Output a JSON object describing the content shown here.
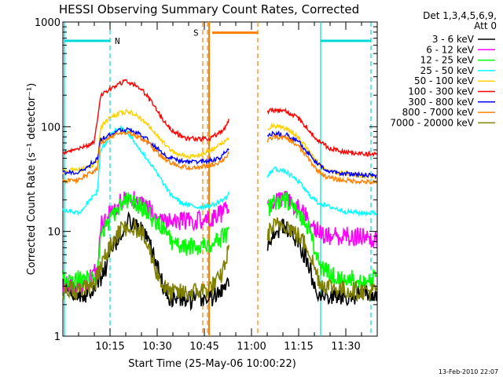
{
  "chart_data": {
    "type": "line",
    "title": "HESSI Observing Summary Count Rates, Corrected",
    "xlabel": "Start Time (25-May-06 10:00:22)",
    "ylabel": "Corrected Count Rate (s⁻¹ detector⁻¹)",
    "y_scale": "log",
    "ylim": [
      1,
      1000
    ],
    "xlim_minutes": [
      0,
      100
    ],
    "x_ticks": [
      {
        "label": "10:15",
        "minutes": 15
      },
      {
        "label": "10:30",
        "minutes": 30
      },
      {
        "label": "10:45",
        "minutes": 45
      },
      {
        "label": "11:00",
        "minutes": 60
      },
      {
        "label": "11:15",
        "minutes": 75
      },
      {
        "label": "11:30",
        "minutes": 90
      }
    ],
    "y_ticks": [
      {
        "label": "1",
        "value": 1
      },
      {
        "label": "10",
        "value": 10
      },
      {
        "label": "100",
        "value": 100
      },
      {
        "label": "1000",
        "value": 1000
      }
    ],
    "legend_header": [
      "Det 1,3,4,5,6,9,",
      "Att 0"
    ],
    "legend_position": "right",
    "footer_date": "13-Feb-2010 22:07",
    "annotations": [
      {
        "label": "N",
        "color": "#00d8d8"
      },
      {
        "label": "S",
        "color": "#ff8000"
      }
    ],
    "flag_markers": [
      {
        "kind": "night",
        "color": "#00d8d8",
        "solid_minutes": [
          0.5,
          82
        ],
        "dashed_minutes": [
          15,
          98
        ],
        "bar_minutes": [
          [
            0.5,
            15
          ],
          [
            82,
            98
          ]
        ],
        "bar_value": 660
      },
      {
        "kind": "saa",
        "color": "#ff8000",
        "solid_minutes": [
          46.5
        ],
        "dashed_minutes": [
          44.5,
          46,
          62
        ],
        "bar_minutes": [
          [
            47.5,
            62
          ]
        ],
        "bar_value": 790
      }
    ],
    "gap_minutes": [
      53,
      65
    ],
    "series": [
      {
        "name": "3 - 6 keV",
        "color": "#000000",
        "values": [
          [
            0,
            3
          ],
          [
            7,
            2.5
          ],
          [
            10,
            3
          ],
          [
            13,
            4
          ],
          [
            15,
            6
          ],
          [
            18,
            9
          ],
          [
            21,
            12.5
          ],
          [
            24,
            11
          ],
          [
            26,
            9
          ],
          [
            28,
            7
          ],
          [
            30,
            4.5
          ],
          [
            32,
            3
          ],
          [
            34,
            2.3
          ],
          [
            40,
            2.2
          ],
          [
            46,
            2.3
          ],
          [
            50,
            2.5
          ],
          [
            52,
            3.5
          ],
          [
            65,
            7
          ],
          [
            67,
            10
          ],
          [
            70,
            11
          ],
          [
            72,
            10
          ],
          [
            75,
            8
          ],
          [
            78,
            5
          ],
          [
            80,
            3
          ],
          [
            82,
            2.5
          ],
          [
            88,
            2.4
          ],
          [
            95,
            2.5
          ],
          [
            100,
            2.5
          ]
        ]
      },
      {
        "name": "6 - 12 keV",
        "color": "#ff00ff",
        "values": [
          [
            0,
            3
          ],
          [
            7,
            3
          ],
          [
            11,
            4.5
          ],
          [
            12,
            12
          ],
          [
            15,
            15
          ],
          [
            18,
            19
          ],
          [
            20,
            21
          ],
          [
            23,
            20
          ],
          [
            26,
            17.5
          ],
          [
            29,
            15
          ],
          [
            32,
            13
          ],
          [
            35,
            12.5
          ],
          [
            40,
            12.5
          ],
          [
            45,
            13
          ],
          [
            49,
            14
          ],
          [
            52,
            16
          ],
          [
            53,
            17
          ],
          [
            65,
            18
          ],
          [
            67,
            20
          ],
          [
            71,
            20
          ],
          [
            75,
            17
          ],
          [
            78,
            14
          ],
          [
            80,
            11
          ],
          [
            83,
            9
          ],
          [
            88,
            9
          ],
          [
            95,
            9
          ],
          [
            100,
            8.5
          ]
        ]
      },
      {
        "name": "12 - 25 keV",
        "color": "#00ff00",
        "values": [
          [
            0,
            3.5
          ],
          [
            11,
            3.5
          ],
          [
            12,
            10
          ],
          [
            15,
            13
          ],
          [
            18,
            17
          ],
          [
            21,
            20
          ],
          [
            23,
            19
          ],
          [
            26,
            16
          ],
          [
            29,
            13
          ],
          [
            32,
            10.5
          ],
          [
            35,
            7.5
          ],
          [
            40,
            7
          ],
          [
            45,
            7.5
          ],
          [
            49,
            8
          ],
          [
            52,
            9.5
          ],
          [
            53,
            10
          ],
          [
            65,
            16
          ],
          [
            67,
            19
          ],
          [
            71,
            19.5
          ],
          [
            75,
            15
          ],
          [
            78,
            11
          ],
          [
            80,
            7
          ],
          [
            82,
            4.5
          ],
          [
            88,
            3.5
          ],
          [
            95,
            3.5
          ],
          [
            100,
            3.5
          ]
        ]
      },
      {
        "name": "25 - 50 keV",
        "color": "#00ffff",
        "values": [
          [
            0,
            16
          ],
          [
            5,
            15
          ],
          [
            8,
            19
          ],
          [
            11,
            24
          ],
          [
            12,
            60
          ],
          [
            15,
            80
          ],
          [
            17,
            95
          ],
          [
            19,
            100
          ],
          [
            22,
            78
          ],
          [
            25,
            58
          ],
          [
            28,
            44
          ],
          [
            31,
            32
          ],
          [
            34,
            23
          ],
          [
            38,
            18.5
          ],
          [
            43,
            17
          ],
          [
            48,
            18
          ],
          [
            52,
            21
          ],
          [
            53,
            24
          ],
          [
            65,
            33
          ],
          [
            67,
            40
          ],
          [
            71,
            37
          ],
          [
            75,
            30
          ],
          [
            78,
            23
          ],
          [
            81,
            19
          ],
          [
            84,
            17.5
          ],
          [
            90,
            15.5
          ],
          [
            95,
            15
          ],
          [
            100,
            15
          ]
        ]
      },
      {
        "name": "50 - 100 keV",
        "color": "#ffd000",
        "values": [
          [
            0,
            37
          ],
          [
            7,
            40
          ],
          [
            11,
            45
          ],
          [
            12,
            100
          ],
          [
            15,
            120
          ],
          [
            18,
            135
          ],
          [
            21,
            140
          ],
          [
            24,
            125
          ],
          [
            27,
            105
          ],
          [
            30,
            82
          ],
          [
            33,
            65
          ],
          [
            36,
            55
          ],
          [
            40,
            52
          ],
          [
            44,
            54
          ],
          [
            48,
            62
          ],
          [
            51,
            70
          ],
          [
            53,
            78
          ],
          [
            65,
            97
          ],
          [
            67,
            103
          ],
          [
            71,
            95
          ],
          [
            75,
            80
          ],
          [
            78,
            60
          ],
          [
            81,
            45
          ],
          [
            84,
            38
          ],
          [
            88,
            36
          ],
          [
            95,
            34
          ],
          [
            100,
            33
          ]
        ]
      },
      {
        "name": "100 - 300 keV",
        "color": "#ff0000",
        "values": [
          [
            0,
            57
          ],
          [
            6,
            62
          ],
          [
            10,
            72
          ],
          [
            12,
            200
          ],
          [
            15,
            230
          ],
          [
            18,
            260
          ],
          [
            20,
            270
          ],
          [
            23,
            250
          ],
          [
            26,
            210
          ],
          [
            29,
            160
          ],
          [
            32,
            115
          ],
          [
            35,
            90
          ],
          [
            39,
            78
          ],
          [
            44,
            76
          ],
          [
            47,
            78
          ],
          [
            50,
            88
          ],
          [
            52,
            100
          ],
          [
            53,
            120
          ],
          [
            65,
            140
          ],
          [
            67,
            145
          ],
          [
            71,
            140
          ],
          [
            75,
            120
          ],
          [
            78,
            95
          ],
          [
            81,
            75
          ],
          [
            84,
            64
          ],
          [
            88,
            58
          ],
          [
            95,
            55
          ],
          [
            100,
            55
          ]
        ]
      },
      {
        "name": "300 - 800 keV",
        "color": "#0000ff",
        "values": [
          [
            0,
            36
          ],
          [
            5,
            37
          ],
          [
            8,
            42
          ],
          [
            11,
            50
          ],
          [
            12,
            75
          ],
          [
            15,
            85
          ],
          [
            18,
            92
          ],
          [
            21,
            93
          ],
          [
            24,
            86
          ],
          [
            27,
            75
          ],
          [
            30,
            62
          ],
          [
            33,
            52
          ],
          [
            37,
            47
          ],
          [
            42,
            46
          ],
          [
            46,
            47
          ],
          [
            50,
            50
          ],
          [
            52,
            58
          ],
          [
            53,
            62
          ],
          [
            65,
            80
          ],
          [
            67,
            86
          ],
          [
            71,
            84
          ],
          [
            75,
            72
          ],
          [
            78,
            56
          ],
          [
            81,
            44
          ],
          [
            84,
            38
          ],
          [
            88,
            36
          ],
          [
            95,
            35
          ],
          [
            100,
            34
          ]
        ]
      },
      {
        "name": "800 - 7000 keV",
        "color": "#ff8000",
        "values": [
          [
            0,
            30
          ],
          [
            5,
            31
          ],
          [
            8,
            35
          ],
          [
            11,
            40
          ],
          [
            12,
            70
          ],
          [
            15,
            80
          ],
          [
            18,
            88
          ],
          [
            21,
            88
          ],
          [
            24,
            80
          ],
          [
            27,
            70
          ],
          [
            30,
            57
          ],
          [
            33,
            47
          ],
          [
            37,
            42
          ],
          [
            42,
            40
          ],
          [
            46,
            42
          ],
          [
            50,
            46
          ],
          [
            52,
            52
          ],
          [
            53,
            58
          ],
          [
            65,
            72
          ],
          [
            67,
            80
          ],
          [
            71,
            78
          ],
          [
            75,
            65
          ],
          [
            78,
            50
          ],
          [
            81,
            38
          ],
          [
            84,
            33
          ],
          [
            88,
            31
          ],
          [
            95,
            30
          ],
          [
            100,
            29
          ]
        ]
      },
      {
        "name": "7000 - 20000 keV",
        "color": "#808000",
        "values": [
          [
            0,
            2.7
          ],
          [
            7,
            2.8
          ],
          [
            10,
            3.2
          ],
          [
            12,
            4.5
          ],
          [
            15,
            7
          ],
          [
            18,
            10
          ],
          [
            21,
            11.5
          ],
          [
            24,
            10.5
          ],
          [
            26,
            8.5
          ],
          [
            28,
            6
          ],
          [
            30,
            4
          ],
          [
            32,
            3
          ],
          [
            34,
            2.6
          ],
          [
            40,
            2.6
          ],
          [
            46,
            2.8
          ],
          [
            50,
            3.5
          ],
          [
            52,
            5.5
          ],
          [
            53,
            7
          ],
          [
            65,
            9.5
          ],
          [
            67,
            11
          ],
          [
            70,
            12
          ],
          [
            72,
            11
          ],
          [
            75,
            9
          ],
          [
            78,
            7
          ],
          [
            80,
            4.5
          ],
          [
            82,
            3.2
          ],
          [
            88,
            2.8
          ],
          [
            95,
            2.7
          ],
          [
            100,
            2.7
          ]
        ]
      }
    ]
  }
}
